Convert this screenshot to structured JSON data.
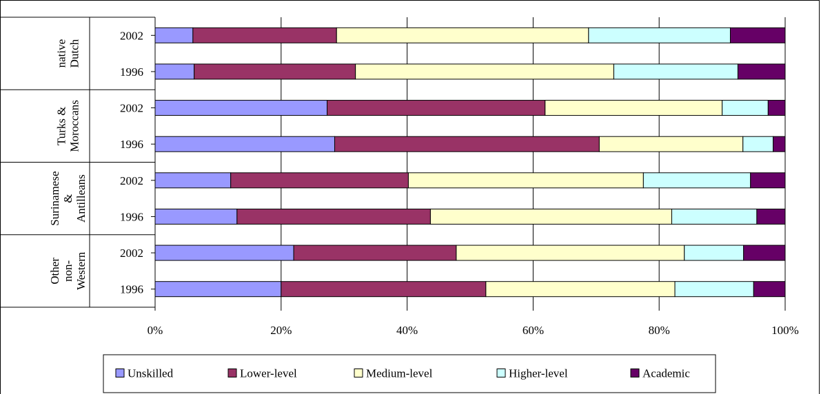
{
  "chart_data": {
    "type": "bar",
    "orientation": "horizontal",
    "stacked": "percent",
    "title": "",
    "xlabel": "",
    "ylabel": "",
    "xlim": [
      0,
      100
    ],
    "x_ticks": [
      "0%",
      "20%",
      "40%",
      "60%",
      "80%",
      "100%"
    ],
    "grid": "vertical",
    "legend_position": "bottom",
    "groups": [
      {
        "lines": [
          "native",
          "Dutch"
        ]
      },
      {
        "lines": [
          "Turks &",
          "Moroccans"
        ]
      },
      {
        "lines": [
          "Surinamese",
          "&",
          "Antilleans"
        ]
      },
      {
        "lines": [
          "Other",
          "non-",
          "Western"
        ]
      }
    ],
    "categories": [
      {
        "group": 0,
        "label": "2002"
      },
      {
        "group": 0,
        "label": "1996"
      },
      {
        "group": 1,
        "label": "2002"
      },
      {
        "group": 1,
        "label": "1996"
      },
      {
        "group": 2,
        "label": "2002"
      },
      {
        "group": 2,
        "label": "1996"
      },
      {
        "group": 3,
        "label": "2002"
      },
      {
        "group": 3,
        "label": "1996"
      }
    ],
    "series": [
      {
        "name": "Unskilled",
        "color": "#9999ff",
        "values": [
          6,
          6.2,
          27.3,
          28.5,
          12,
          13,
          22,
          20
        ]
      },
      {
        "name": "Lower-level",
        "color": "#993366",
        "values": [
          22.8,
          25.6,
          34.6,
          42,
          28.2,
          30.7,
          25.8,
          32.5
        ]
      },
      {
        "name": "Medium-level",
        "color": "#ffffcc",
        "values": [
          40,
          41,
          28.1,
          22.8,
          37.3,
          38.3,
          36.2,
          30
        ]
      },
      {
        "name": "Higher-level",
        "color": "#ccffff",
        "values": [
          22.5,
          19.7,
          7.3,
          4.8,
          17,
          13.5,
          9.4,
          12.5
        ]
      },
      {
        "name": "Academic",
        "color": "#660066",
        "values": [
          8.7,
          7.5,
          2.7,
          1.9,
          5.5,
          4.5,
          6.6,
          5
        ]
      }
    ]
  }
}
